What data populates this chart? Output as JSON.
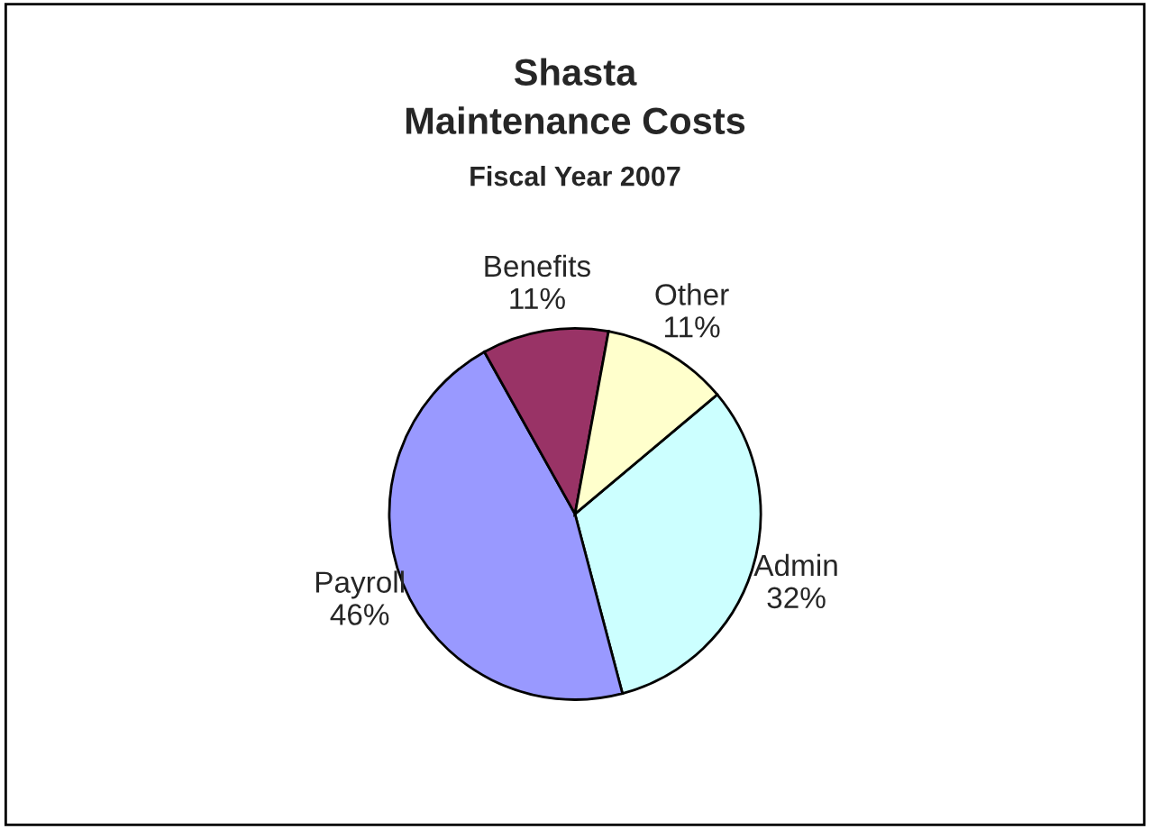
{
  "chart_data": {
    "type": "pie",
    "title": "Shasta\nMaintenance Costs",
    "subtitle": "Fiscal Year 2007",
    "categories": [
      "Admin",
      "Payroll",
      "Benefits",
      "Other"
    ],
    "values": [
      32,
      46,
      11,
      11
    ],
    "value_labels": [
      "32%",
      "46%",
      "11%",
      "11%"
    ],
    "colors": [
      "#ccffff",
      "#9999ff",
      "#993366",
      "#ffffcc"
    ],
    "legend": false
  }
}
